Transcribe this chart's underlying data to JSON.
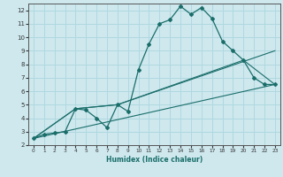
{
  "xlabel": "Humidex (Indice chaleur)",
  "background_color": "#cee8ee",
  "grid_color": "#b0d8e0",
  "line_color": "#1a6e6a",
  "xlim": [
    -0.5,
    23.5
  ],
  "ylim": [
    2,
    12.5
  ],
  "xticks": [
    0,
    1,
    2,
    3,
    4,
    5,
    6,
    7,
    8,
    9,
    10,
    11,
    12,
    13,
    14,
    15,
    16,
    17,
    18,
    19,
    20,
    21,
    22,
    23
  ],
  "yticks": [
    2,
    3,
    4,
    5,
    6,
    7,
    8,
    9,
    10,
    11,
    12
  ],
  "main_line": {
    "x": [
      0,
      1,
      2,
      3,
      4,
      5,
      6,
      7,
      8,
      9,
      10,
      11,
      12,
      13,
      14,
      15,
      16,
      17,
      18,
      19,
      20,
      21,
      22,
      23
    ],
    "y": [
      2.5,
      2.8,
      2.9,
      3.0,
      4.7,
      4.6,
      4.0,
      3.3,
      5.0,
      4.5,
      7.6,
      9.5,
      11.0,
      11.3,
      12.3,
      11.7,
      12.2,
      11.4,
      9.7,
      9.0,
      8.3,
      7.0,
      6.5,
      6.5
    ]
  },
  "reg_lines": [
    {
      "x": [
        0,
        23
      ],
      "y": [
        2.5,
        6.5
      ]
    },
    {
      "x": [
        0,
        4,
        8,
        23
      ],
      "y": [
        2.5,
        4.7,
        5.0,
        9.0
      ]
    },
    {
      "x": [
        0,
        4,
        8,
        20,
        23
      ],
      "y": [
        2.5,
        4.7,
        5.0,
        8.3,
        6.5
      ]
    }
  ]
}
